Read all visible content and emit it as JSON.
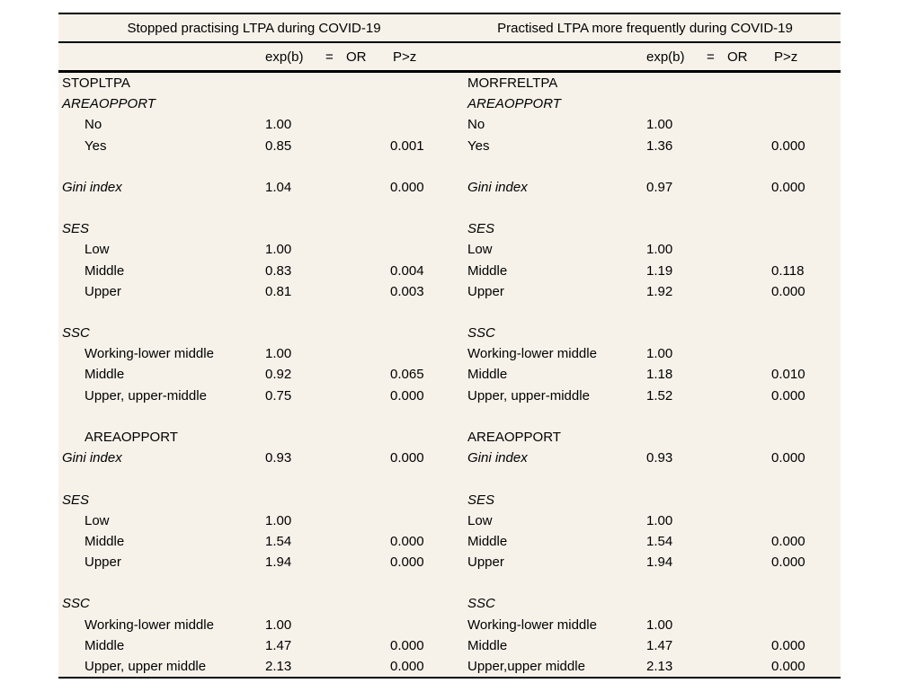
{
  "page": {
    "background_color": "#ffffff",
    "table_background_color": "#f6f2ea",
    "rule_color": "#000000",
    "text_color": "#000000"
  },
  "panels": [
    {
      "title": "Stopped practising LTPA during COVID-19",
      "model_name": "STOPLTPA"
    },
    {
      "title": "Practised LTPA more frequently during COVID-19",
      "model_name": "MORFRELTPA"
    }
  ],
  "columns": {
    "expb": "exp(b)",
    "eq": "=",
    "or": "OR",
    "pz": "P>z"
  },
  "rows": [
    {
      "blank": false,
      "left": {
        "label": "STOPLTPA",
        "indent": 0,
        "italic": false,
        "expb": "",
        "pz": ""
      },
      "right": {
        "label": "MORFRELTPA",
        "indent": 0,
        "italic": false,
        "expb": "",
        "pz": ""
      }
    },
    {
      "blank": false,
      "left": {
        "label": "AREAOPPORT",
        "indent": 0,
        "italic": true,
        "expb": "",
        "pz": ""
      },
      "right": {
        "label": "AREAOPPORT",
        "indent": 0,
        "italic": true,
        "expb": "",
        "pz": ""
      }
    },
    {
      "blank": false,
      "left": {
        "label": "No",
        "indent": 1,
        "italic": false,
        "expb": "1.00",
        "pz": ""
      },
      "right": {
        "label": "No",
        "indent": 0,
        "italic": false,
        "expb": "1.00",
        "pz": ""
      }
    },
    {
      "blank": false,
      "left": {
        "label": "Yes",
        "indent": 1,
        "italic": false,
        "expb": "0.85",
        "pz": "0.001"
      },
      "right": {
        "label": "Yes",
        "indent": 0,
        "italic": false,
        "expb": "1.36",
        "pz": "0.000"
      }
    },
    {
      "blank": true
    },
    {
      "blank": false,
      "left": {
        "label": "Gini index",
        "indent": 0,
        "italic": true,
        "expb": "1.04",
        "pz": "0.000"
      },
      "right": {
        "label": "Gini index",
        "indent": 0,
        "italic": true,
        "expb": "0.97",
        "pz": "0.000"
      }
    },
    {
      "blank": true
    },
    {
      "blank": false,
      "left": {
        "label": "SES",
        "indent": 0,
        "italic": true,
        "expb": "",
        "pz": ""
      },
      "right": {
        "label": "SES",
        "indent": 0,
        "italic": true,
        "expb": "",
        "pz": ""
      }
    },
    {
      "blank": false,
      "left": {
        "label": "Low",
        "indent": 1,
        "italic": false,
        "expb": "1.00",
        "pz": ""
      },
      "right": {
        "label": "Low",
        "indent": 0,
        "italic": false,
        "expb": "1.00",
        "pz": ""
      }
    },
    {
      "blank": false,
      "left": {
        "label": "Middle",
        "indent": 1,
        "italic": false,
        "expb": "0.83",
        "pz": "0.004"
      },
      "right": {
        "label": "Middle",
        "indent": 0,
        "italic": false,
        "expb": "1.19",
        "pz": "0.118"
      }
    },
    {
      "blank": false,
      "left": {
        "label": "Upper",
        "indent": 1,
        "italic": false,
        "expb": "0.81",
        "pz": "0.003"
      },
      "right": {
        "label": "Upper",
        "indent": 0,
        "italic": false,
        "expb": "1.92",
        "pz": "0.000"
      }
    },
    {
      "blank": true
    },
    {
      "blank": false,
      "left": {
        "label": "SSC",
        "indent": 0,
        "italic": true,
        "expb": "",
        "pz": ""
      },
      "right": {
        "label": "SSC",
        "indent": 0,
        "italic": true,
        "expb": "",
        "pz": ""
      }
    },
    {
      "blank": false,
      "left": {
        "label": "Working-lower middle",
        "indent": 1,
        "italic": false,
        "expb": "1.00",
        "pz": ""
      },
      "right": {
        "label": "Working-lower middle",
        "indent": 0,
        "italic": false,
        "expb": "1.00",
        "pz": ""
      }
    },
    {
      "blank": false,
      "left": {
        "label": "Middle",
        "indent": 1,
        "italic": false,
        "expb": "0.92",
        "pz": "0.065"
      },
      "right": {
        "label": "Middle",
        "indent": 0,
        "italic": false,
        "expb": "1.18",
        "pz": "0.010"
      }
    },
    {
      "blank": false,
      "left": {
        "label": "Upper, upper-middle",
        "indent": 1,
        "italic": false,
        "expb": "0.75",
        "pz": "0.000"
      },
      "right": {
        "label": "Upper, upper-middle",
        "indent": 0,
        "italic": false,
        "expb": "1.52",
        "pz": "0.000"
      }
    },
    {
      "blank": true
    },
    {
      "blank": false,
      "left": {
        "label": "AREAOPPORT",
        "indent": 1,
        "italic": false,
        "expb": "",
        "pz": ""
      },
      "right": {
        "label": "AREAOPPORT",
        "indent": 0,
        "italic": false,
        "expb": "",
        "pz": ""
      }
    },
    {
      "blank": false,
      "left": {
        "label": "Gini index",
        "indent": 0,
        "italic": true,
        "expb": "0.93",
        "pz": "0.000"
      },
      "right": {
        "label": "Gini index",
        "indent": 0,
        "italic": true,
        "expb": "0.93",
        "pz": "0.000"
      }
    },
    {
      "blank": true
    },
    {
      "blank": false,
      "left": {
        "label": "SES",
        "indent": 0,
        "italic": true,
        "expb": "",
        "pz": ""
      },
      "right": {
        "label": "SES",
        "indent": 0,
        "italic": true,
        "expb": "",
        "pz": ""
      }
    },
    {
      "blank": false,
      "left": {
        "label": "Low",
        "indent": 1,
        "italic": false,
        "expb": "1.00",
        "pz": ""
      },
      "right": {
        "label": "Low",
        "indent": 0,
        "italic": false,
        "expb": "1.00",
        "pz": ""
      }
    },
    {
      "blank": false,
      "left": {
        "label": "Middle",
        "indent": 1,
        "italic": false,
        "expb": "1.54",
        "pz": "0.000"
      },
      "right": {
        "label": "Middle",
        "indent": 0,
        "italic": false,
        "expb": "1.54",
        "pz": "0.000"
      }
    },
    {
      "blank": false,
      "left": {
        "label": "Upper",
        "indent": 1,
        "italic": false,
        "expb": "1.94",
        "pz": "0.000"
      },
      "right": {
        "label": "Upper",
        "indent": 0,
        "italic": false,
        "expb": "1.94",
        "pz": "0.000"
      }
    },
    {
      "blank": true
    },
    {
      "blank": false,
      "left": {
        "label": "SSC",
        "indent": 0,
        "italic": true,
        "expb": "",
        "pz": ""
      },
      "right": {
        "label": "SSC",
        "indent": 0,
        "italic": true,
        "expb": "",
        "pz": ""
      }
    },
    {
      "blank": false,
      "left": {
        "label": "Working-lower middle",
        "indent": 1,
        "italic": false,
        "expb": "1.00",
        "pz": ""
      },
      "right": {
        "label": "Working-lower middle",
        "indent": 0,
        "italic": false,
        "expb": "1.00",
        "pz": ""
      }
    },
    {
      "blank": false,
      "left": {
        "label": "Middle",
        "indent": 1,
        "italic": false,
        "expb": "1.47",
        "pz": "0.000"
      },
      "right": {
        "label": "Middle",
        "indent": 0,
        "italic": false,
        "expb": "1.47",
        "pz": "0.000"
      }
    },
    {
      "blank": false,
      "left": {
        "label": "Upper, upper middle",
        "indent": 1,
        "italic": false,
        "expb": "2.13",
        "pz": "0.000"
      },
      "right": {
        "label": "Upper,upper middle",
        "indent": 0,
        "italic": false,
        "expb": "2.13",
        "pz": "0.000"
      }
    }
  ]
}
